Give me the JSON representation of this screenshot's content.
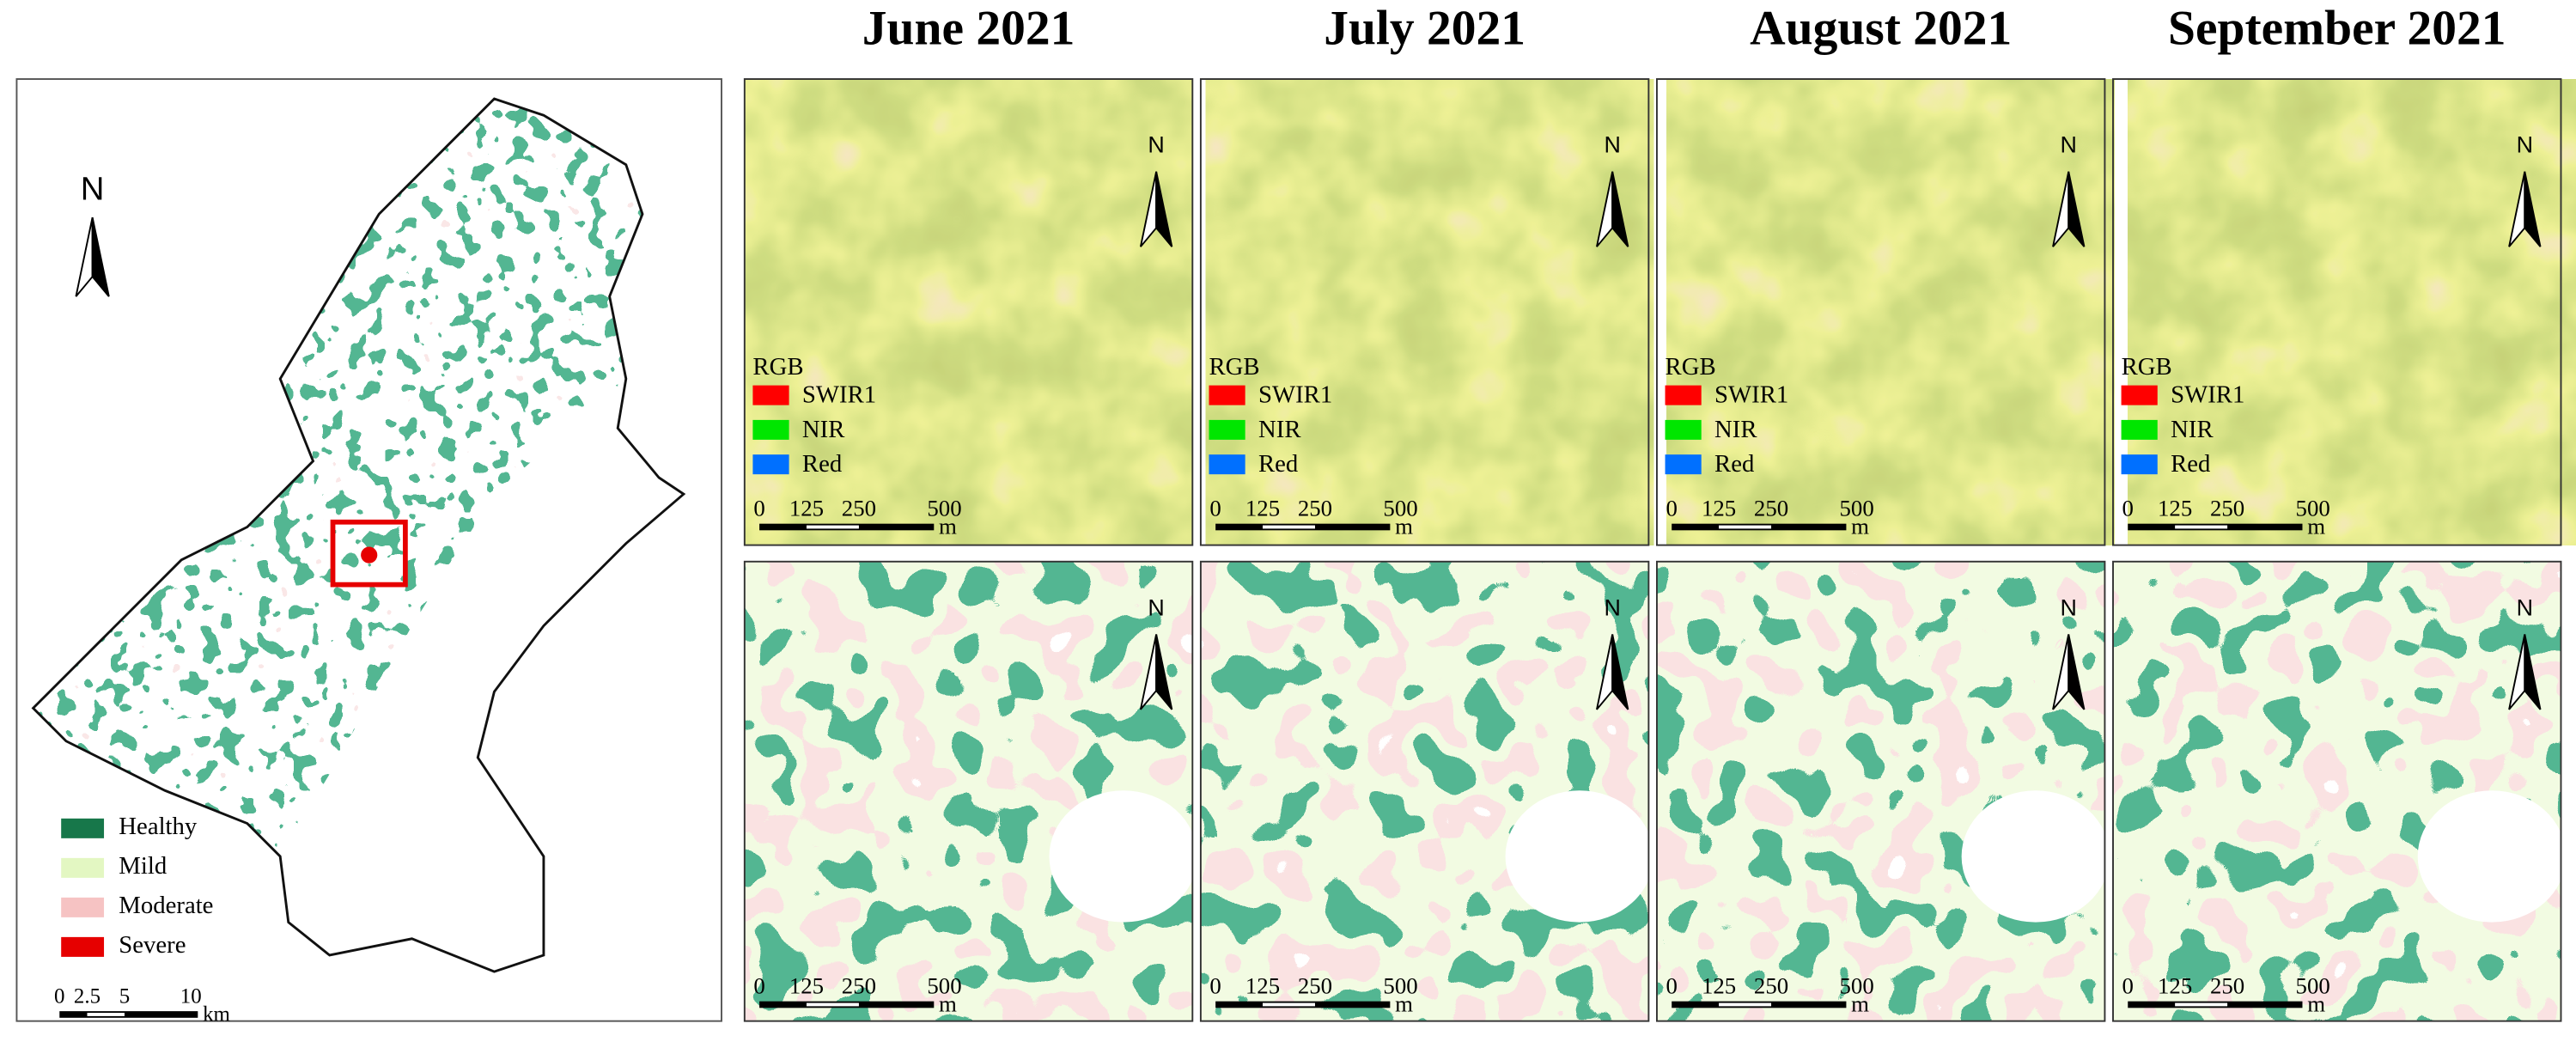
{
  "overview_map": {
    "north": "N",
    "legend": [
      {
        "name": "Healthy",
        "color": "#17774a"
      },
      {
        "name": "Mild",
        "color": "#e3f7c2"
      },
      {
        "name": "Moderate",
        "color": "#f6c3c3"
      },
      {
        "name": "Severe",
        "color": "#e60000"
      }
    ],
    "scale_bar": {
      "ticks": [
        "0",
        "2.5",
        "5",
        "10"
      ],
      "unit": "km"
    }
  },
  "panels": {
    "titles": [
      "June 2021",
      "July 2021",
      "August 2021",
      "September 2021"
    ],
    "north": "N",
    "rgb_legend": {
      "title": "RGB",
      "bands": [
        {
          "name": "SWIR1",
          "color": "#ff0000"
        },
        {
          "name": "NIR",
          "color": "#00e600"
        },
        {
          "name": "Red",
          "color": "#0070ff"
        }
      ]
    },
    "scale_bar": {
      "ticks": [
        "0",
        "125",
        "250",
        "500"
      ],
      "unit": "m"
    }
  }
}
